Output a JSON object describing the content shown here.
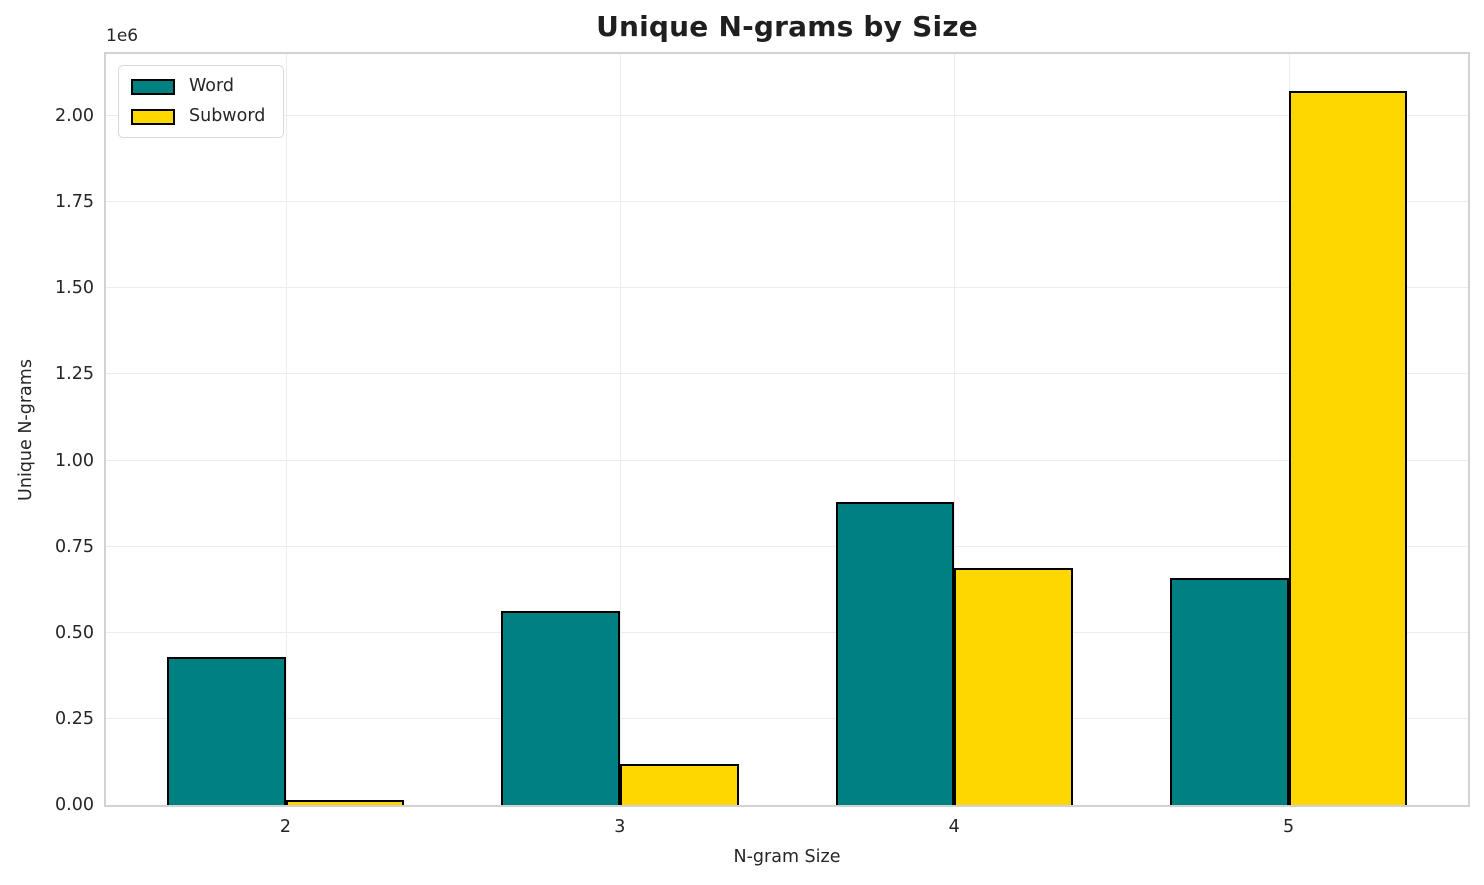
{
  "chart_data": {
    "type": "bar",
    "title": "Unique N-grams by Size",
    "xlabel": "N-gram Size",
    "ylabel": "Unique N-grams",
    "y_offset_text": "1e6",
    "categories": [
      "2",
      "3",
      "4",
      "5"
    ],
    "series": [
      {
        "name": "Word",
        "color": "#008080",
        "values": [
          430000,
          563000,
          880000,
          658000
        ]
      },
      {
        "name": "Subword",
        "color": "#FFD700",
        "values": [
          14000,
          118000,
          687000,
          2072000
        ]
      }
    ],
    "bar_edge_color": "#000000",
    "ylim": [
      0,
      2180000
    ],
    "yticks": [
      {
        "value": 0,
        "label": "0.00"
      },
      {
        "value": 250000,
        "label": "0.25"
      },
      {
        "value": 500000,
        "label": "0.50"
      },
      {
        "value": 750000,
        "label": "0.75"
      },
      {
        "value": 1000000,
        "label": "1.00"
      },
      {
        "value": 1250000,
        "label": "1.25"
      },
      {
        "value": 1500000,
        "label": "1.50"
      },
      {
        "value": 1750000,
        "label": "1.75"
      },
      {
        "value": 2000000,
        "label": "2.00"
      }
    ],
    "grid": true,
    "grid_color": "#ececec",
    "spine_color": "#d2d2d2",
    "legend": {
      "position": "upper left"
    }
  }
}
